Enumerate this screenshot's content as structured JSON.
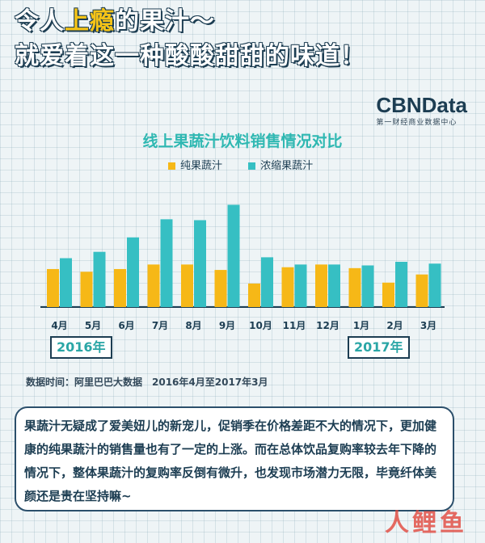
{
  "headline": {
    "line1_a": "令人",
    "line1_hl": "上瘾",
    "line1_b": "的果汁～",
    "line2": "就爱着这一种酸酸甜甜的味道！"
  },
  "logo": {
    "name": "CBNData",
    "sub": "第一财经商业数据中心"
  },
  "chart_data": {
    "type": "bar",
    "title": "线上果蔬汁饮料销售情况对比",
    "categories": [
      "4月",
      "5月",
      "6月",
      "7月",
      "8月",
      "9月",
      "10月",
      "11月",
      "12月",
      "1月",
      "2月",
      "3月"
    ],
    "series": [
      {
        "name": "纯果蔬汁",
        "color": "#f6b817",
        "values": [
          42,
          39,
          42,
          47,
          47,
          41,
          26,
          44,
          47,
          43,
          27,
          36
        ]
      },
      {
        "name": "浓缩果蔬汁",
        "color": "#36bfc3",
        "values": [
          54,
          61,
          77,
          97,
          96,
          113,
          55,
          47,
          47,
          46,
          50,
          48
        ]
      }
    ],
    "ylim": [
      0,
      125
    ],
    "year_labels": [
      "2016年",
      "2017年"
    ],
    "grid": false,
    "legend": "top"
  },
  "source": "数据时间：阿里巴巴大数据　2016年4月至2017年3月",
  "paragraph": "果蔬汁无疑成了爱美妞儿的新宠儿，促销季在价格差距不大的情况下，更加健康的纯果蔬汁的销售量也有了一定的上涨。而在总体饮品复购率较去年下降的情况下，整体果蔬汁的复购率反倒有微升，也发现市场潜力无限，毕竟纤体美颜还是贵在坚持嘛~",
  "watermark": "人鲤鱼"
}
